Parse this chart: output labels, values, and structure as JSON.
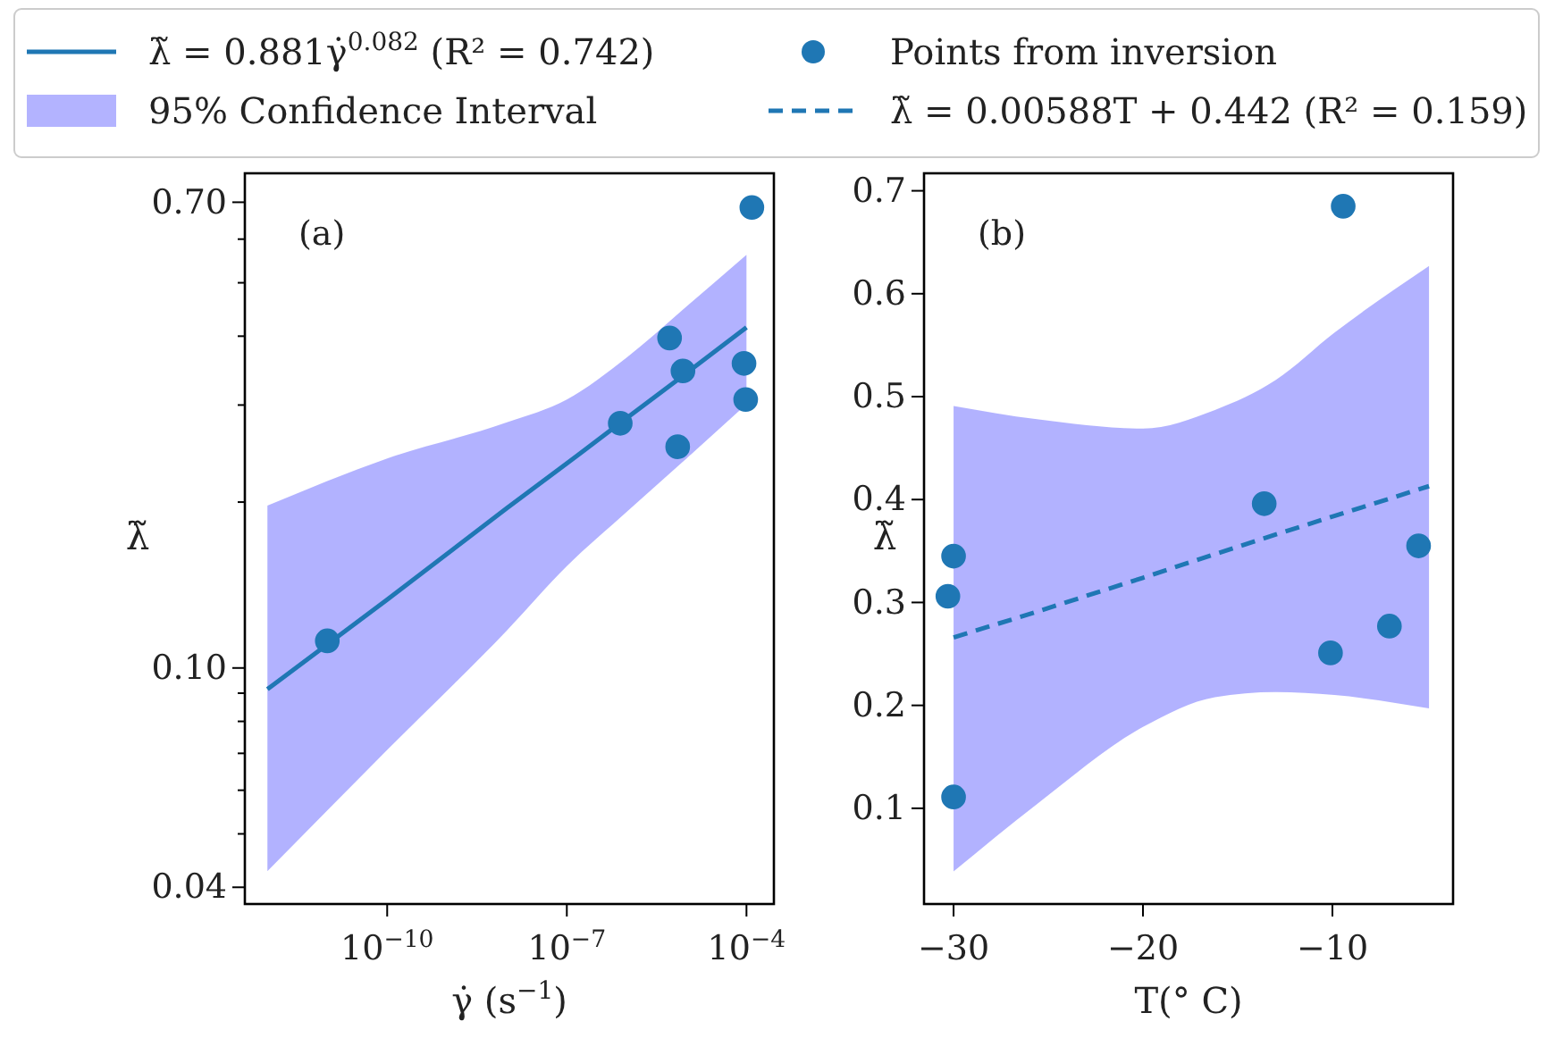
{
  "chart_data": [
    {
      "type": "scatter",
      "xlabel": "γ̇ (s$^{−1}$)",
      "ylabel": "λ̃",
      "annotations": [
        "(a)",
        "95% Confidence Interval"
      ],
      "log": "xy",
      "grid": false,
      "legend": "top",
      "xlim": [
        4.2e-13,
        0.000287
      ],
      "ylim": [
        0.0373,
        0.79
      ],
      "xticks": [
        {
          "value": 1e-10,
          "label": "10$^{−10}$"
        },
        {
          "value": 1e-07,
          "label": "10$^{−7}$"
        },
        {
          "value": 0.0001,
          "label": "10$^{−4}$"
        }
      ],
      "yticks": [
        0.04,
        {
          "value": 0.05,
          "label": null
        },
        {
          "value": 0.06,
          "label": null
        },
        {
          "value": 0.07,
          "label": null
        },
        {
          "value": 0.08,
          "label": null
        },
        {
          "value": 0.09,
          "label": null
        },
        {
          "value": 0.1,
          "label": "0.10"
        },
        {
          "value": 0.2,
          "label": null
        },
        {
          "value": 0.3,
          "label": null
        },
        {
          "value": 0.4,
          "label": null
        },
        {
          "value": 0.5,
          "label": null
        },
        {
          "value": 0.6,
          "label": null
        },
        {
          "value": 0.7,
          "label": "0.70"
        }
      ],
      "series": [
        {
          "type": "line",
          "name": "λ̃ = 0.881γ̇$^{0.082}$ (R² = 0.742)",
          "color": "#1f77b4",
          "line_style": "solid",
          "marker": "none",
          "x": [
            1e-12,
            1e-10,
            1e-08,
            1e-07,
            1e-06,
            1e-05,
            0.0001
          ],
          "values": [
            0.0915,
            0.133,
            0.195,
            0.235,
            0.284,
            0.343,
            0.415
          ],
          "lower": [
            0.0428,
            0.071,
            0.117,
            0.153,
            0.192,
            0.24,
            0.301
          ],
          "upper": [
            0.197,
            0.24,
            0.279,
            0.307,
            0.366,
            0.453,
            0.562
          ]
        },
        {
          "color": "#1f77b4",
          "marker": "circle",
          "x": [
            1e-11,
            7.8e-07,
            5.2e-06,
            8.7e-06,
            7.1e-06,
            9.1e-05,
            9.7e-05,
            0.000123
          ],
          "values": [
            0.112,
            0.278,
            0.397,
            0.346,
            0.252,
            0.357,
            0.307,
            0.685
          ]
        }
      ]
    },
    {
      "type": "scatter",
      "xlabel": "T(° C)",
      "ylabel": "λ̃",
      "annotations": [
        "(b)"
      ],
      "grid": false,
      "legend": "top",
      "xlim": [
        -31.56,
        -3.63
      ],
      "ylim": [
        0.007,
        0.717
      ],
      "xticks": [
        {
          "value": -30,
          "label": "−30"
        },
        {
          "value": -20,
          "label": "−20"
        },
        {
          "value": -10,
          "label": "−10"
        }
      ],
      "yticks": [
        0.1,
        0.2,
        0.3,
        0.4,
        0.5,
        0.6,
        0.7
      ],
      "series": [
        {
          "name": "Points from inversion",
          "color": "#1f77b4",
          "marker": "circle",
          "x": [
            -9.43,
            -13.6,
            -5.45,
            -30,
            -30.3,
            -6.99,
            -10.1,
            -30
          ],
          "values": [
            0.685,
            0.396,
            0.355,
            0.345,
            0.306,
            0.277,
            0.251,
            0.111
          ]
        },
        {
          "type": "line",
          "name": "λ̃ = 0.00588T + 0.442 (R² = 0.159)",
          "color": "#1f77b4",
          "line_style": "dashed",
          "marker": "none",
          "x": [
            -30,
            -25.6,
            -20,
            -16.2,
            -13,
            -9.9,
            -4.9
          ],
          "values": [
            0.266,
            0.291,
            0.324,
            0.347,
            0.366,
            0.384,
            0.413
          ],
          "lower": [
            0.0386,
            0.104,
            0.179,
            0.208,
            0.213,
            0.21,
            0.197
          ],
          "upper": [
            0.491,
            0.478,
            0.469,
            0.487,
            0.516,
            0.562,
            0.627
          ]
        }
      ]
    }
  ]
}
